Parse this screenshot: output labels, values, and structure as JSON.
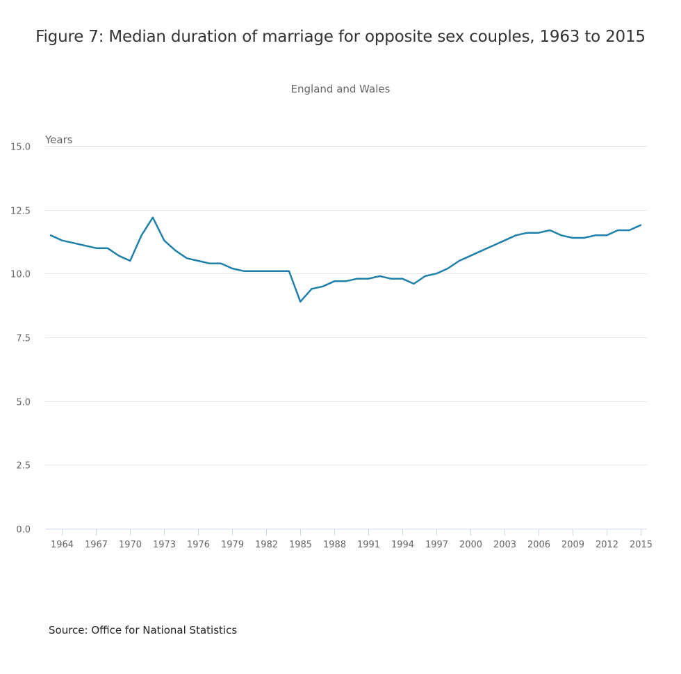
{
  "chart_data": {
    "type": "line",
    "title": "Figure 7: Median duration of marriage for opposite sex couples, 1963 to 2015",
    "subtitle": "England and Wales",
    "xlabel": "",
    "ylabel": "Years",
    "ylim": [
      0,
      15
    ],
    "yticks": [
      "0.0",
      "2.5",
      "5.0",
      "7.5",
      "10.0",
      "12.5",
      "15.0"
    ],
    "ytick_values": [
      0,
      2.5,
      5,
      7.5,
      10,
      12.5,
      15
    ],
    "xlim": [
      1963,
      2015
    ],
    "xticks": [
      "1964",
      "1967",
      "1970",
      "1973",
      "1976",
      "1979",
      "1982",
      "1985",
      "1988",
      "1991",
      "1994",
      "1997",
      "2000",
      "2003",
      "2006",
      "2009",
      "2012",
      "2015"
    ],
    "grid": true,
    "legend": "none",
    "series": [
      {
        "name": "Median duration of marriage",
        "color": "#1f80aa",
        "x": [
          1963,
          1964,
          1965,
          1966,
          1967,
          1968,
          1969,
          1970,
          1971,
          1972,
          1973,
          1974,
          1975,
          1976,
          1977,
          1978,
          1979,
          1980,
          1981,
          1982,
          1983,
          1984,
          1985,
          1986,
          1987,
          1988,
          1989,
          1990,
          1991,
          1992,
          1993,
          1994,
          1995,
          1996,
          1997,
          1998,
          1999,
          2000,
          2001,
          2002,
          2003,
          2004,
          2005,
          2006,
          2007,
          2008,
          2009,
          2010,
          2011,
          2012,
          2013,
          2014,
          2015
        ],
        "values": [
          11.5,
          11.3,
          11.2,
          11.1,
          11.0,
          11.0,
          10.7,
          10.5,
          11.5,
          12.2,
          11.3,
          10.9,
          10.6,
          10.5,
          10.4,
          10.4,
          10.2,
          10.1,
          10.1,
          10.1,
          10.1,
          10.1,
          8.9,
          9.4,
          9.5,
          9.7,
          9.7,
          9.8,
          9.8,
          9.9,
          9.8,
          9.8,
          9.6,
          9.9,
          10.0,
          10.2,
          10.5,
          10.7,
          10.9,
          11.1,
          11.3,
          11.5,
          11.6,
          11.6,
          11.7,
          11.5,
          11.4,
          11.4,
          11.5,
          11.5,
          11.7,
          11.7,
          11.9
        ]
      }
    ],
    "source": "Source: Office for National Statistics"
  },
  "colors": {
    "grid": "#e6e6e6",
    "axis": "#ccd6eb",
    "text": "#666666",
    "title": "#333333"
  }
}
